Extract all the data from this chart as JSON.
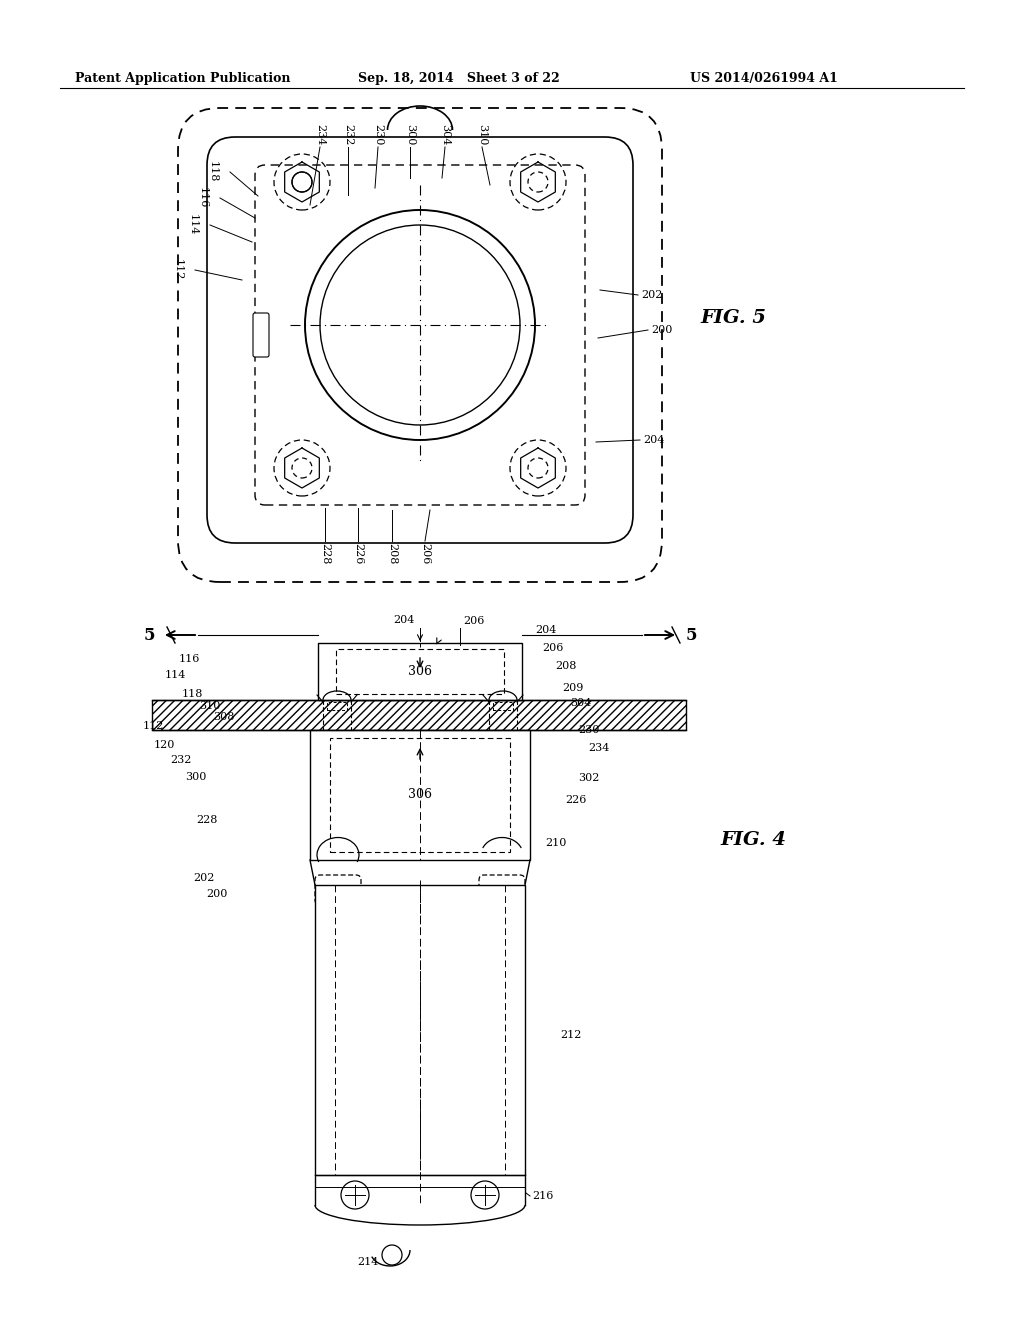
{
  "header_left": "Patent Application Publication",
  "header_mid": "Sep. 18, 2014   Sheet 3 of 22",
  "header_right": "US 2014/0261994 A1",
  "fig5_label": "FIG. 5",
  "fig4_label": "FIG. 4",
  "bg_color": "#ffffff",
  "lc": "#000000"
}
